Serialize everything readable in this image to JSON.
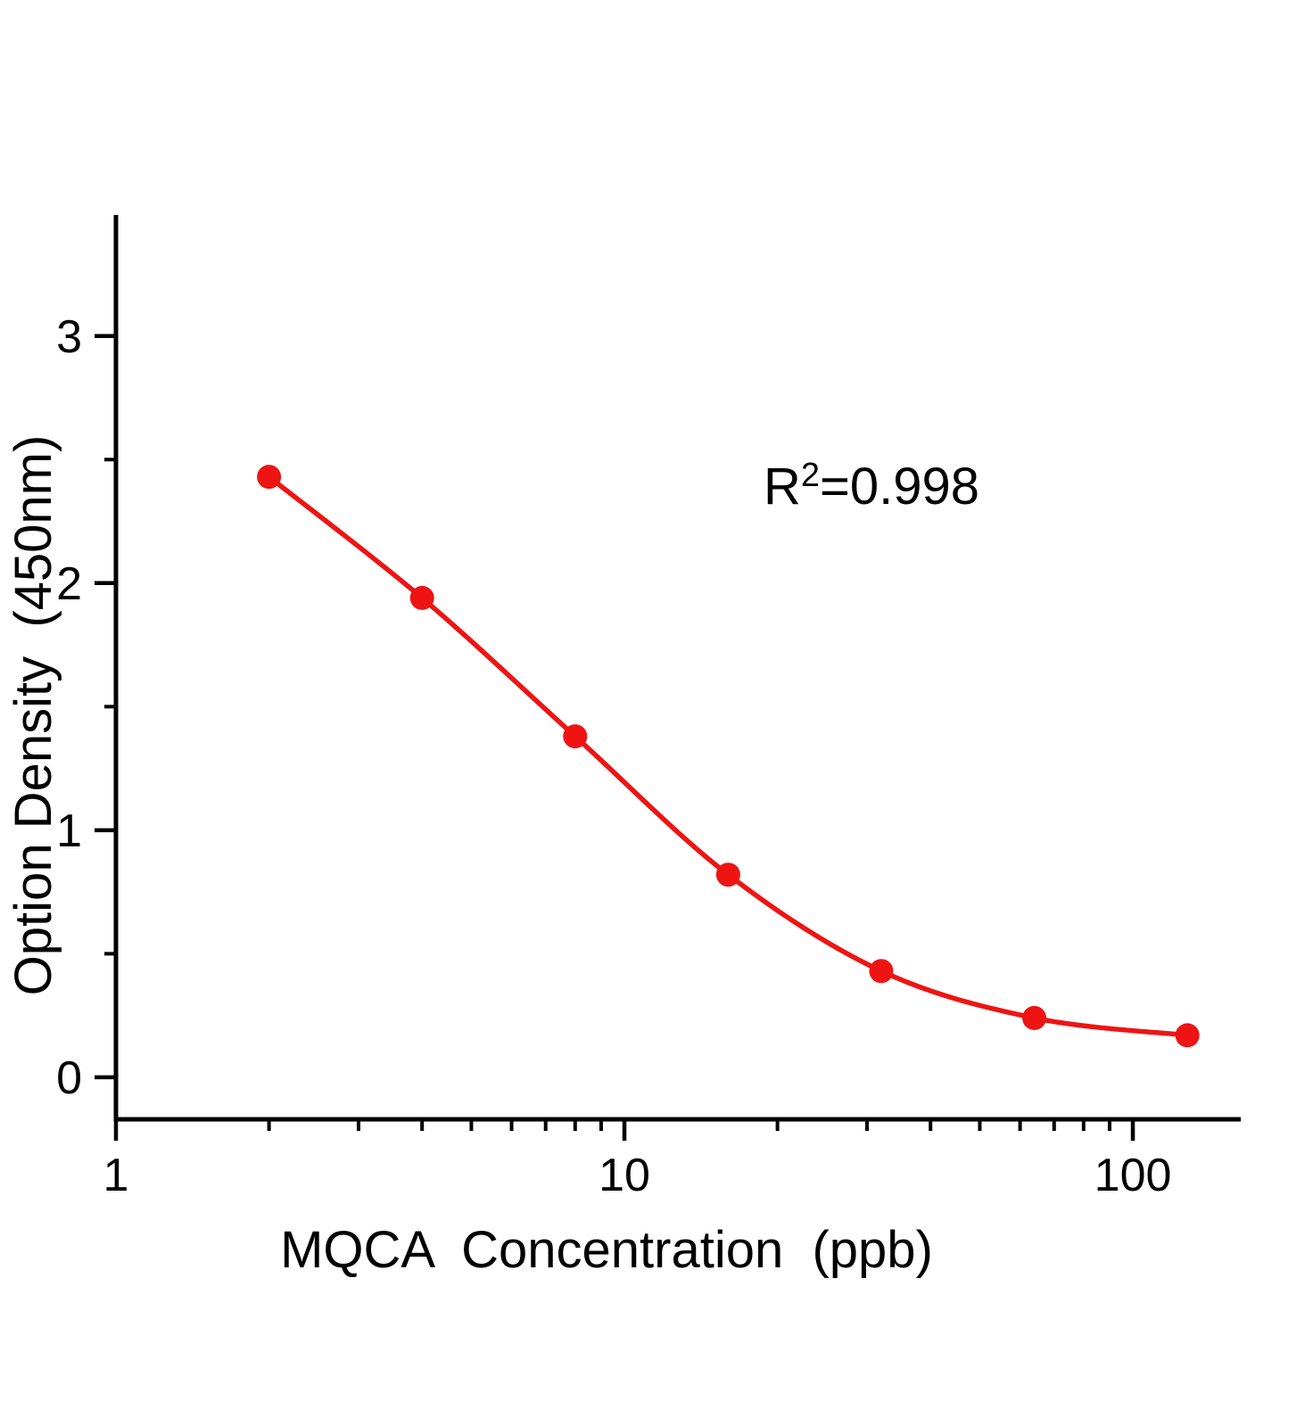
{
  "chart": {
    "background": "#ffffff",
    "accent_color": "#ee1414",
    "axis_color": "#000000",
    "annotation": {
      "base": "R",
      "sup": "2",
      "rest": "=0.998"
    },
    "x_axis": {
      "label": "MQCA  Concentration  (ppb)",
      "scale": "log",
      "major_ticks": [
        1,
        10,
        100
      ],
      "range": [
        1,
        163
      ]
    },
    "y_axis": {
      "label": "Option Density  (450nm)",
      "scale": "linear",
      "major_ticks": [
        0,
        1,
        2,
        3
      ],
      "minor_ticks": [
        0.5,
        1.5,
        2.5
      ],
      "range": [
        -0.17,
        3.49
      ]
    }
  },
  "chart_data": {
    "type": "scatter",
    "x": [
      2,
      4,
      8,
      16,
      32,
      64,
      128
    ],
    "y": [
      2.43,
      1.94,
      1.38,
      0.82,
      0.43,
      0.24,
      0.17
    ],
    "title": "",
    "xlabel": "MQCA  Concentration  (ppb)",
    "ylabel": "Option Density  (450nm)",
    "x_scale": "log",
    "xlim": [
      1,
      163
    ],
    "ylim": [
      -0.17,
      3.49
    ],
    "annotation": "R²=0.998",
    "marker": "circle",
    "line": true,
    "grid": false,
    "legend": "none"
  }
}
